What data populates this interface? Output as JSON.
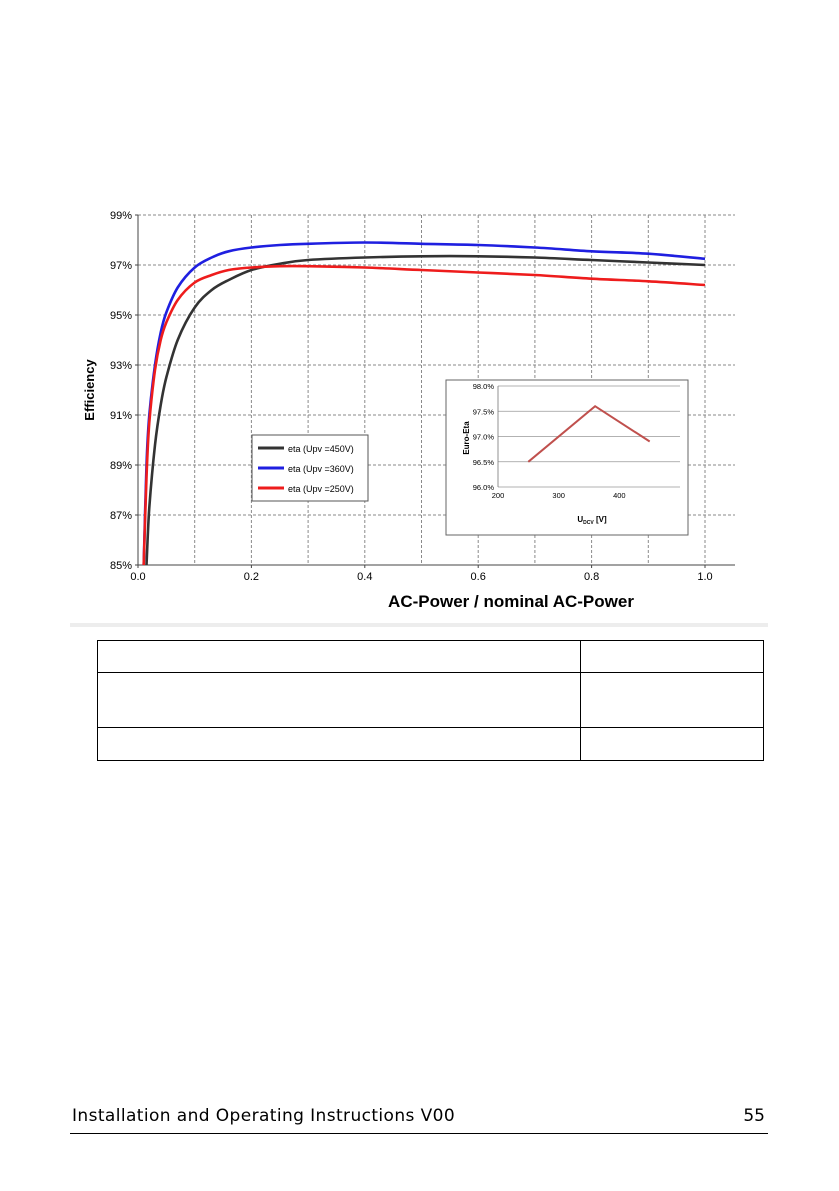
{
  "chart_data": [
    {
      "type": "line",
      "title": "",
      "xlabel": "AC-Power / nominal AC-Power",
      "ylabel": "Efficiency",
      "xlim": [
        0.0,
        1.0
      ],
      "ylim": [
        85,
        99
      ],
      "x_ticks": [
        "0.0",
        "0.2",
        "0.4",
        "0.6",
        "0.8",
        "1.0"
      ],
      "y_ticks": [
        "85%",
        "87%",
        "89%",
        "91%",
        "93%",
        "95%",
        "97%",
        "99%"
      ],
      "grid": true,
      "legend_position": "left-center",
      "series": [
        {
          "name": "eta (Upv =450V)",
          "color": "#333333",
          "x": [
            0.015,
            0.02,
            0.03,
            0.04,
            0.05,
            0.07,
            0.1,
            0.13,
            0.16,
            0.2,
            0.25,
            0.3,
            0.4,
            0.5,
            0.6,
            0.7,
            0.8,
            0.9,
            1.0
          ],
          "y": [
            85.0,
            87.3,
            89.8,
            91.4,
            92.5,
            94.0,
            95.3,
            96.0,
            96.4,
            96.8,
            97.05,
            97.2,
            97.3,
            97.35,
            97.35,
            97.3,
            97.2,
            97.1,
            97.0
          ]
        },
        {
          "name": "eta (Upv =360V)",
          "color": "#1f1fe0",
          "x": [
            0.01,
            0.015,
            0.02,
            0.03,
            0.04,
            0.05,
            0.07,
            0.1,
            0.13,
            0.16,
            0.2,
            0.25,
            0.3,
            0.4,
            0.5,
            0.6,
            0.7,
            0.8,
            0.9,
            1.0
          ],
          "y": [
            85.0,
            89.0,
            91.0,
            93.0,
            94.3,
            95.1,
            96.1,
            96.9,
            97.3,
            97.55,
            97.7,
            97.8,
            97.85,
            97.9,
            97.85,
            97.8,
            97.7,
            97.55,
            97.45,
            97.25
          ]
        },
        {
          "name": "eta (Upv =250V)",
          "color": "#ee1c1c",
          "x": [
            0.01,
            0.015,
            0.02,
            0.03,
            0.04,
            0.05,
            0.07,
            0.1,
            0.13,
            0.16,
            0.2,
            0.25,
            0.3,
            0.4,
            0.5,
            0.6,
            0.7,
            0.8,
            0.9,
            1.0
          ],
          "y": [
            85.0,
            88.5,
            90.7,
            92.8,
            94.0,
            94.7,
            95.6,
            96.3,
            96.6,
            96.8,
            96.9,
            96.95,
            96.95,
            96.9,
            96.8,
            96.7,
            96.6,
            96.45,
            96.35,
            96.2
          ]
        }
      ]
    },
    {
      "type": "line",
      "title": "",
      "xlabel": "Udcv [V]",
      "ylabel": "Euro-Eta",
      "xlim": [
        200,
        500
      ],
      "ylim": [
        96.0,
        98.0
      ],
      "x_ticks": [
        "200",
        "300",
        "400"
      ],
      "y_ticks": [
        "96.0%",
        "96.5%",
        "97.0%",
        "97.5%",
        "98.0%"
      ],
      "grid": true,
      "series": [
        {
          "color": "#c0504d",
          "x": [
            250,
            360,
            450
          ],
          "y": [
            96.5,
            97.6,
            96.9
          ]
        }
      ]
    }
  ],
  "table": {
    "rows": [
      [
        "",
        ""
      ],
      [
        "",
        ""
      ],
      [
        "",
        ""
      ]
    ]
  },
  "footer": {
    "text": "Installation and Operating Instructions V00",
    "page": "55"
  }
}
